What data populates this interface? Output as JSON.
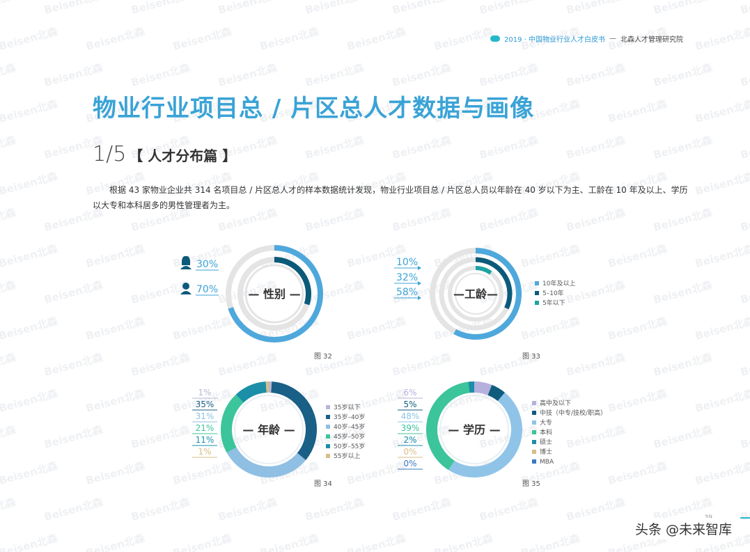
{
  "header": {
    "report_title": "2019 · 中国物业行业人才白皮书",
    "separator": "—",
    "organization": "北森人才管理研究院"
  },
  "page_title": "物业行业项目总 / 片区总人才数据与画像",
  "section": {
    "number": "1/5",
    "name": "【 人才分布篇 】"
  },
  "intro_text": "根据 43 家物业企业共 314 名项目总 / 片区总人才的样本数据统计发现，物业行业项目总 / 片区总人员以年龄在 40 岁以下为主、工龄在 10 年及以上、学历以大专和本科居多的男性管理者为主。",
  "watermark": "Beisen北森",
  "footer_tag": "头条 @未来智库",
  "page_number": "39",
  "colors": {
    "accent": "#3aa3d6",
    "navy": "#0b5a7a",
    "track": "#e4e4e4"
  },
  "chart_data": [
    {
      "id": "fig32",
      "type": "pie",
      "layout": "concentric-rings",
      "title": "— 性别 —",
      "caption": "图 32",
      "series": [
        {
          "label": "30%",
          "icon": "female-icon",
          "value": 30,
          "color": "#0b5a7a"
        },
        {
          "label": "70%",
          "icon": "male-icon",
          "value": 70,
          "color": "#4ea8dc"
        }
      ]
    },
    {
      "id": "fig33",
      "type": "pie",
      "layout": "concentric-rings",
      "title": "—工龄—",
      "caption": "图 33",
      "series": [
        {
          "label": "58%",
          "value": 58,
          "color": "#4ea8dc",
          "legend": "10年及以上"
        },
        {
          "label": "32%",
          "value": 32,
          "color": "#0b5a7a",
          "legend": "5–10年"
        },
        {
          "label": "10%",
          "value": 10,
          "color": "#1fa3a3",
          "legend": "5年以下"
        }
      ]
    },
    {
      "id": "fig34",
      "type": "pie",
      "layout": "donut",
      "title": "— 年龄 —",
      "caption": "图 34",
      "series": [
        {
          "label": "1%",
          "value": 1,
          "color": "#b5b8d6",
          "legend": "35岁以下"
        },
        {
          "label": "35%",
          "value": 35,
          "color": "#1a5f86",
          "legend": "35岁–40岁"
        },
        {
          "label": "31%",
          "value": 31,
          "color": "#8fbfe3",
          "legend": "40岁–45岁"
        },
        {
          "label": "21%",
          "value": 21,
          "color": "#3cc49a",
          "legend": "45岁–50岁"
        },
        {
          "label": "11%",
          "value": 11,
          "color": "#1b8fa8",
          "legend": "50岁–55岁"
        },
        {
          "label": "1%",
          "value": 1,
          "color": "#d8bd86",
          "legend": "55岁以上"
        }
      ]
    },
    {
      "id": "fig35",
      "type": "pie",
      "layout": "donut",
      "title": "— 学历 —",
      "caption": "图 35",
      "series": [
        {
          "label": "6%",
          "value": 6,
          "color": "#b5b0dc",
          "legend": "高中及以下"
        },
        {
          "label": "5%",
          "value": 5,
          "color": "#0f5d7c",
          "legend": "中技（中专/技校/职高）"
        },
        {
          "label": "48%",
          "value": 48,
          "color": "#8fc4e8",
          "legend": "大专"
        },
        {
          "label": "39%",
          "value": 39,
          "color": "#3cc49a",
          "legend": "本科"
        },
        {
          "label": "2%",
          "value": 2,
          "color": "#1b8fa8",
          "legend": "硕士"
        },
        {
          "label": "0%",
          "value": 0,
          "color": "#d8bd86",
          "legend": "博士"
        },
        {
          "label": "0%",
          "value": 0,
          "color": "#3b78c2",
          "legend": "MBA"
        }
      ]
    }
  ]
}
